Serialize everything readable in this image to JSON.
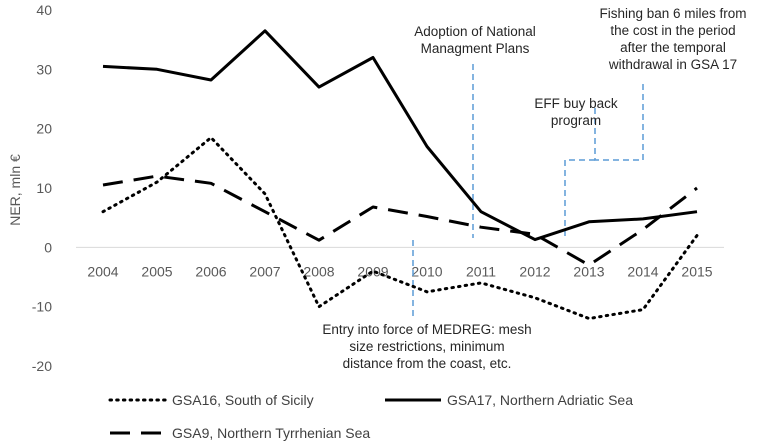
{
  "chart_data": {
    "type": "line",
    "title": "",
    "xlabel": "",
    "ylabel": "NER, mln €",
    "ylim": [
      -20,
      40
    ],
    "yticks": [
      -20,
      -10,
      0,
      10,
      20,
      30,
      40
    ],
    "categories": [
      "2004",
      "2005",
      "2006",
      "2007",
      "2008",
      "2009",
      "2010",
      "2011",
      "2012",
      "2013",
      "2014",
      "2015"
    ],
    "grid": false,
    "legend_position": "bottom",
    "series": [
      {
        "name": "GSA16, South of Sicily",
        "style": "dotted",
        "color": "#000000",
        "values": [
          6,
          11,
          18.5,
          9,
          -10,
          -4,
          -7.5,
          -6,
          -8.5,
          -12,
          -10.5,
          2
        ]
      },
      {
        "name": "GSA17, Northern Adriatic Sea",
        "style": "solid",
        "color": "#000000",
        "values": [
          30.5,
          30,
          28.2,
          36.5,
          27,
          32,
          17,
          6,
          1.3,
          4.3,
          4.8,
          6
        ]
      },
      {
        "name": "GSA9, Northern Tyrrhenian Sea",
        "style": "dashed",
        "color": "#000000",
        "values": [
          10.5,
          12,
          10.8,
          6,
          1.2,
          6.8,
          5.2,
          3.4,
          2.2,
          -3,
          3,
          10
        ]
      }
    ],
    "annotations": [
      {
        "id": "nmp",
        "lines": [
          "Adoption of National",
          "Managment Plans"
        ]
      },
      {
        "id": "fishing-ban",
        "lines": [
          "Fishing ban 6 miles from",
          "the cost in the period",
          "after the temporal",
          "withdrawal in GSA 17"
        ]
      },
      {
        "id": "eff",
        "lines": [
          "EFF buy back",
          "program"
        ]
      },
      {
        "id": "medreg",
        "lines": [
          "Entry into force of MEDREG: mesh",
          "size restrictions, minimum",
          "distance from the coast, etc."
        ]
      }
    ],
    "annotation_color": "#5b9bd5"
  }
}
